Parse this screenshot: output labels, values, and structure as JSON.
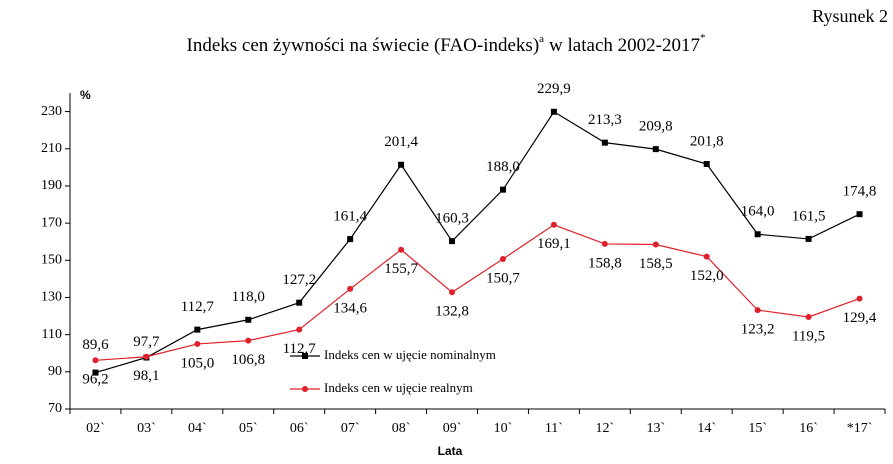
{
  "chart_data": {
    "type": "line",
    "figure_label": "Rysunek 2",
    "title": "Indeks cen żywności na świecie (FAO-indeks)",
    "title_note": "a",
    "title_suffix": "w latach 2002-2017",
    "title_note2": "*",
    "y_unit": "%",
    "xlabel": "Lata",
    "categories": [
      "02`",
      "03`",
      "04`",
      "05`",
      "06`",
      "07`",
      "08`",
      "09`",
      "10`",
      "11`",
      "12`",
      "13`",
      "14`",
      "15`",
      "16`",
      "*17`"
    ],
    "series": [
      {
        "name": "Indeks cen w ujęcie nominalnym",
        "color": "#000000",
        "values": [
          89.6,
          97.7,
          112.7,
          118.0,
          127.2,
          161.4,
          201.4,
          160.3,
          188.0,
          229.9,
          213.3,
          209.8,
          201.8,
          164.0,
          161.5,
          174.8
        ],
        "value_labels": [
          "89,6",
          "97,7",
          "112,7",
          "118,0",
          "127,2",
          "161,4",
          "201,4",
          "160,3",
          "188,0",
          "229,9",
          "213,3",
          "209,8",
          "201,8",
          "164,0",
          "161,5",
          "174,8"
        ]
      },
      {
        "name": "Indeks cen w ujęcie realnym",
        "color": "#e0202a",
        "values": [
          96.2,
          98.1,
          105.0,
          106.8,
          112.7,
          134.6,
          155.7,
          132.8,
          150.7,
          169.1,
          158.8,
          158.5,
          152.0,
          123.2,
          119.5,
          129.4
        ],
        "value_labels": [
          "96,2",
          "98,1",
          "105,0",
          "106,8",
          "112,7",
          "134,6",
          "155,7",
          "132,8",
          "150,7",
          "169,1",
          "158,8",
          "158,5",
          "152,0",
          "123,2",
          "119,5",
          "129,4"
        ]
      }
    ],
    "ylim": [
      70,
      240
    ],
    "yticks": [
      70,
      90,
      110,
      130,
      150,
      170,
      190,
      210,
      230
    ]
  }
}
